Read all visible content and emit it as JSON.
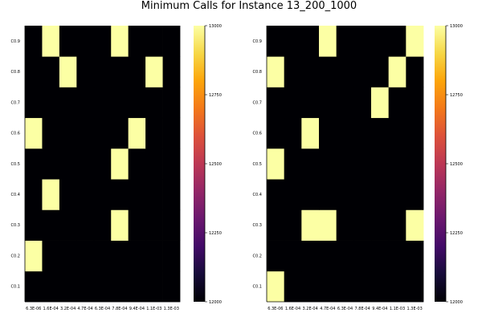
{
  "title": "Minimum Calls for Instance 13_200_1000",
  "colors": {
    "low": "#000004",
    "high": "#fcffa4",
    "frame": "#000000"
  },
  "colormap": "inferno",
  "chart_data": [
    {
      "type": "heatmap",
      "title": "",
      "x_categories": [
        "6.3E-06",
        "1.6E-04",
        "3.2E-04",
        "4.7E-04",
        "6.3E-04",
        "7.8E-04",
        "9.4E-04",
        "1.1E-03",
        "1.3E-03"
      ],
      "y_categories": [
        "C0.1",
        "C0.2",
        "C0.3",
        "C0.4",
        "C0.5",
        "C0.6",
        "C0.7",
        "C0.8",
        "C0.9"
      ],
      "value_range": [
        12000,
        13000
      ],
      "colorbar_ticks": [
        "12000",
        "12250",
        "12500",
        "12750",
        "13000"
      ],
      "legend": "colorbar right",
      "grid": false,
      "values": [
        [
          12000,
          12000,
          12000,
          12000,
          12000,
          12000,
          12000,
          12000,
          12000
        ],
        [
          13000,
          12000,
          12000,
          12000,
          12000,
          12000,
          12000,
          12000,
          12000
        ],
        [
          12000,
          12000,
          12000,
          12000,
          12000,
          13000,
          12000,
          12000,
          12000
        ],
        [
          12000,
          13000,
          12000,
          12000,
          12000,
          12000,
          12000,
          12000,
          12000
        ],
        [
          12000,
          12000,
          12000,
          12000,
          12000,
          13000,
          12000,
          12000,
          12000
        ],
        [
          13000,
          12000,
          12000,
          12000,
          12000,
          12000,
          13000,
          12000,
          12000
        ],
        [
          12000,
          12000,
          12000,
          12000,
          12000,
          12000,
          12000,
          12000,
          12000
        ],
        [
          12000,
          12000,
          13000,
          12000,
          12000,
          12000,
          12000,
          13000,
          12000
        ],
        [
          12000,
          13000,
          12000,
          12000,
          12000,
          13000,
          12000,
          12000,
          12000
        ]
      ]
    },
    {
      "type": "heatmap",
      "title": "",
      "x_categories": [
        "6.3E-06",
        "1.6E-04",
        "3.2E-04",
        "4.7E-04",
        "6.3E-04",
        "7.8E-04",
        "9.4E-04",
        "1.1E-03",
        "1.3E-03"
      ],
      "y_categories": [
        "C0.1",
        "C0.2",
        "C0.3",
        "C0.4",
        "C0.5",
        "C0.6",
        "C0.7",
        "C0.8",
        "C0.9"
      ],
      "value_range": [
        12000,
        13000
      ],
      "colorbar_ticks": [
        "12000",
        "12250",
        "12500",
        "12750",
        "13000"
      ],
      "legend": "colorbar right",
      "grid": false,
      "values": [
        [
          13000,
          12000,
          12000,
          12000,
          12000,
          12000,
          12000,
          12000,
          12000
        ],
        [
          12000,
          12000,
          12000,
          12000,
          12000,
          12000,
          12000,
          12000,
          12000
        ],
        [
          12000,
          12000,
          13000,
          13000,
          12000,
          12000,
          12000,
          12000,
          13000
        ],
        [
          12000,
          12000,
          12000,
          12000,
          12000,
          12000,
          12000,
          12000,
          12000
        ],
        [
          13000,
          12000,
          12000,
          12000,
          12000,
          12000,
          12000,
          12000,
          12000
        ],
        [
          12000,
          12000,
          13000,
          12000,
          12000,
          12000,
          12000,
          12000,
          12000
        ],
        [
          12000,
          12000,
          12000,
          12000,
          12000,
          12000,
          13000,
          12000,
          12000
        ],
        [
          13000,
          12000,
          12000,
          12000,
          12000,
          12000,
          12000,
          13000,
          12000
        ],
        [
          12000,
          12000,
          12000,
          13000,
          12000,
          12000,
          12000,
          12000,
          13000
        ]
      ]
    }
  ]
}
